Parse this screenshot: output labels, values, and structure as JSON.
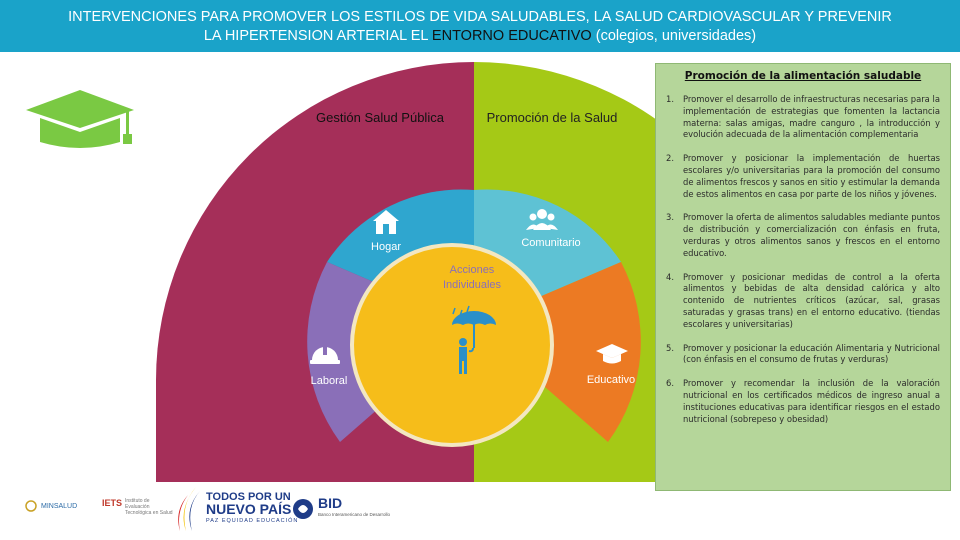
{
  "header": {
    "line1": "INTERVENCIONES PARA PROMOVER LOS ESTILOS DE VIDA SALUDABLES, LA SALUD CARDIOVASCULAR Y  PREVENIR",
    "line2_pre": "LA HIPERTENSION ARTERIAL EL ",
    "line2_highlight": "ENTORNO EDUCATIVO",
    "line2_post": " (colegios, universidades)"
  },
  "diagram": {
    "outer_left_label": "Gestión Salud Pública",
    "outer_right_label": "Promoción de la Salud",
    "segments": {
      "hogar": "Hogar",
      "comunitario": "Comunitario",
      "laboral": "Laboral",
      "educativo": "Educativo"
    },
    "center_label_line1": "Acciones",
    "center_label_line2": "Individuales"
  },
  "icons": {
    "cap": "graduation-cap-icon",
    "house": "house-icon",
    "people": "people-icon",
    "helmet": "hardhat-icon",
    "school": "graduation-cap-icon",
    "person": "person-umbrella-icon"
  },
  "colors": {
    "header_bg": "#1aa3c9",
    "gestion": "#a52f59",
    "promocion": "#a5c916",
    "hogar": "#2fa6cf",
    "comunitario": "#5ec2d4",
    "laboral": "#8a6fb8",
    "educativo": "#ec7a23",
    "center": "#f6bd1a",
    "panel_bg": "#b5d69a"
  },
  "panel": {
    "title": "Promoción de la alimentación saludable",
    "items": [
      {
        "num": "1.",
        "text": "Promover el desarrollo de infraestructuras necesarias para la implementación de estrategias que fomenten la lactancia materna: salas amigas, madre canguro , la introducción  y evolución adecuada de la alimentación complementaria"
      },
      {
        "num": "2.",
        "text": "Promover y posicionar la implementación de huertas escolares y/o universitarias para la promoción del consumo de alimentos frescos y sanos en sitio y estimular la demanda de estos alimentos en casa por parte de los niños y jóvenes."
      },
      {
        "num": "3.",
        "text": "Promover la oferta de alimentos saludables mediante puntos de distribución y comercialización con énfasis en fruta, verduras y otros alimentos sanos y frescos en el entorno educativo."
      },
      {
        "num": "4.",
        "text": "Promover y posicionar  medidas de control a la oferta alimentos y bebidas de alta densidad calórica y alto contenido de nutrientes críticos (azúcar, sal, grasas saturadas y grasas trans)   en el entorno educativo. (tiendas escolares y universitarias)"
      },
      {
        "num": "5.",
        "text": "Promover y posicionar la educación Alimentaria y Nutricional (con énfasis en el consumo de frutas y verduras)"
      },
      {
        "num": "6.",
        "text": "Promover y recomendar la inclusión de la valoración nutricional en los certificados médicos de ingreso anual a instituciones educativas para identificar riesgos en el estado nutricional (sobrepeso y obesidad)"
      }
    ]
  },
  "logos": {
    "minsalud": "MINSALUD",
    "iets": "IETS",
    "iets_sub": "Instituto de Evaluación Tecnológica en Salud",
    "np_line1": "TODOS POR UN",
    "np_line2": "NUEVO PAÍS",
    "np_line3": "PAZ  EQUIDAD  EDUCACIÓN",
    "bid": "BID",
    "bid_sub": "Banco Interamericano de Desarrollo"
  }
}
